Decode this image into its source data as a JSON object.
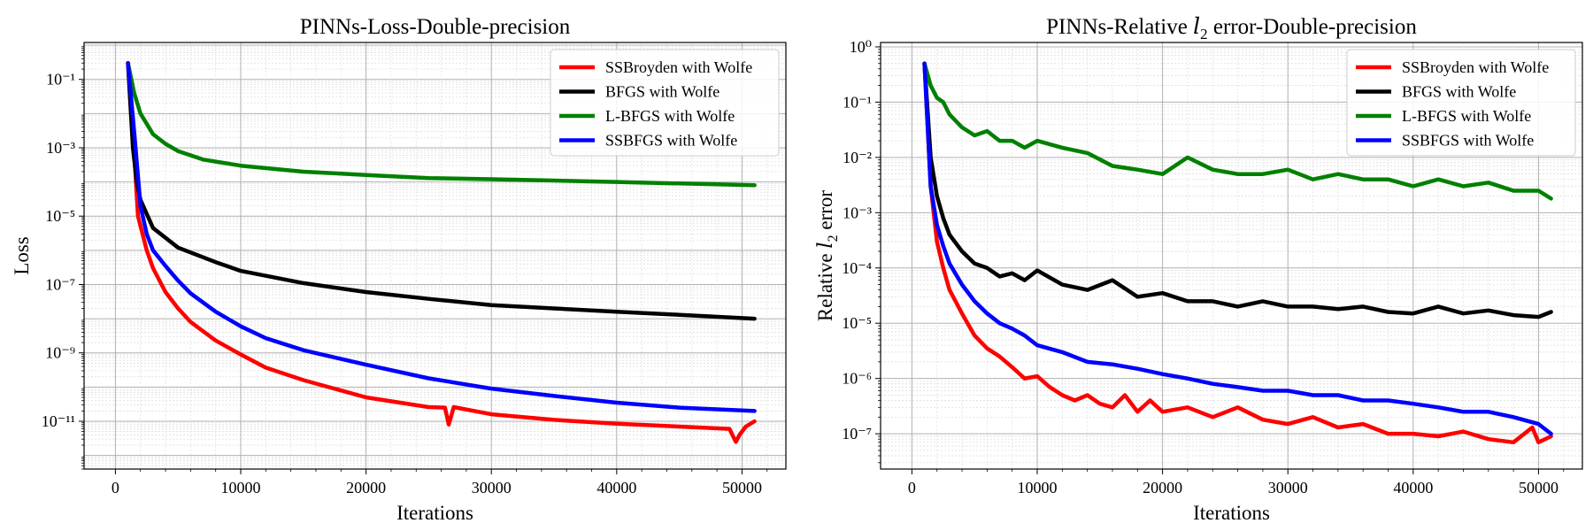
{
  "chart_data": [
    {
      "type": "line",
      "title": "PINNs-Loss-Double-precision",
      "xlabel": "Iterations",
      "ylabel": "Loss",
      "yscale": "log",
      "xlim": [
        -2500,
        53500
      ],
      "ylim": [
        4e-13,
        1.2
      ],
      "x_ticks": [
        0,
        10000,
        20000,
        30000,
        40000,
        50000
      ],
      "y_ticks": [
        1e-11,
        1e-09,
        1e-07,
        1e-05,
        0.001,
        0.1
      ],
      "grid": true,
      "grid_minor": true,
      "legend": "top-right",
      "series": [
        {
          "name": "SSBroyden with Wolfe",
          "color": "#ff0000",
          "x": [
            1000,
            1400,
            1800,
            2500,
            3000,
            4000,
            5000,
            6000,
            8000,
            10000,
            12000,
            15000,
            20000,
            25000,
            26300,
            26600,
            27000,
            30000,
            35000,
            40000,
            45000,
            49000,
            49500,
            49800,
            50300,
            51000
          ],
          "y": [
            0.3,
            0.003,
            1e-05,
            1e-06,
            3e-07,
            6e-08,
            2e-08,
            8e-09,
            2.3e-09,
            9e-10,
            3.7e-10,
            1.6e-10,
            5e-11,
            2.6e-11,
            2.5e-11,
            8e-12,
            2.6e-11,
            1.6e-11,
            1.1e-11,
            8.5e-12,
            7e-12,
            6e-12,
            2.5e-12,
            4e-12,
            7e-12,
            1e-11
          ]
        },
        {
          "name": "BFGS with Wolfe",
          "color": "#000000",
          "x": [
            1000,
            1400,
            1700,
            2000,
            3000,
            5000,
            8000,
            10000,
            15000,
            20000,
            25000,
            30000,
            35000,
            40000,
            45000,
            51000
          ],
          "y": [
            0.3,
            0.001,
            0.0001,
            3e-05,
            4.5e-06,
            1.2e-06,
            4.5e-07,
            2.5e-07,
            1.1e-07,
            6e-08,
            3.8e-08,
            2.5e-08,
            2e-08,
            1.6e-08,
            1.3e-08,
            1e-08
          ]
        },
        {
          "name": "L-BFGS with Wolfe",
          "color": "#008000",
          "x": [
            1000,
            1500,
            2000,
            3000,
            4000,
            5000,
            7000,
            10000,
            15000,
            20000,
            25000,
            30000,
            35000,
            40000,
            45000,
            51000
          ],
          "y": [
            0.3,
            0.04,
            0.01,
            0.0025,
            0.0013,
            0.0008,
            0.00045,
            0.0003,
            0.0002,
            0.00016,
            0.00013,
            0.00012,
            0.00011,
            0.0001,
            9e-05,
            8e-05
          ]
        },
        {
          "name": "SSBFGS with Wolfe",
          "color": "#0000ff",
          "x": [
            1000,
            1500,
            2000,
            2500,
            3000,
            4000,
            5000,
            6000,
            8000,
            10000,
            12000,
            15000,
            20000,
            25000,
            30000,
            35000,
            40000,
            45000,
            51000
          ],
          "y": [
            0.3,
            0.003,
            2e-05,
            3e-06,
            1e-06,
            3.5e-07,
            1.3e-07,
            5.5e-08,
            1.6e-08,
            6e-09,
            2.7e-09,
            1.2e-09,
            4.5e-10,
            1.8e-10,
            9e-11,
            5.5e-11,
            3.5e-11,
            2.5e-11,
            2e-11
          ]
        }
      ]
    },
    {
      "type": "line",
      "title": "PINNs-Relative l2 error-Double-precision",
      "xlabel": "Iterations",
      "ylabel": "Relative l2 error",
      "yscale": "log",
      "xlim": [
        -2500,
        53500
      ],
      "ylim": [
        2.3e-08,
        1.2
      ],
      "x_ticks": [
        0,
        10000,
        20000,
        30000,
        40000,
        50000
      ],
      "y_ticks": [
        1e-07,
        1e-06,
        1e-05,
        0.0001,
        0.001,
        0.01,
        0.1,
        1
      ],
      "grid": true,
      "grid_minor": true,
      "legend": "top-right",
      "series": [
        {
          "name": "SSBroyden with Wolfe",
          "color": "#ff0000",
          "x": [
            1000,
            1500,
            2000,
            2500,
            3000,
            4000,
            5000,
            6000,
            7000,
            8000,
            9000,
            10000,
            11000,
            12000,
            13000,
            14000,
            15000,
            16000,
            17000,
            18000,
            19000,
            20000,
            22000,
            24000,
            26000,
            28000,
            30000,
            32000,
            34000,
            36000,
            38000,
            40000,
            42000,
            44000,
            46000,
            48000,
            49500,
            50000,
            51000
          ],
          "y": [
            0.5,
            0.003,
            0.0003,
            0.0001,
            4e-05,
            1.5e-05,
            6e-06,
            3.5e-06,
            2.5e-06,
            1.6e-06,
            1e-06,
            1.1e-06,
            7e-07,
            5e-07,
            4e-07,
            5e-07,
            3.5e-07,
            3e-07,
            5e-07,
            2.5e-07,
            4e-07,
            2.5e-07,
            3e-07,
            2e-07,
            3e-07,
            1.8e-07,
            1.5e-07,
            2e-07,
            1.3e-07,
            1.5e-07,
            1e-07,
            1e-07,
            9e-08,
            1.1e-07,
            8e-08,
            7e-08,
            1.3e-07,
            7e-08,
            9e-08
          ]
        },
        {
          "name": "BFGS with Wolfe",
          "color": "#000000",
          "x": [
            1000,
            1500,
            2000,
            2500,
            3000,
            4000,
            5000,
            6000,
            7000,
            8000,
            9000,
            10000,
            12000,
            14000,
            16000,
            18000,
            20000,
            22000,
            24000,
            26000,
            28000,
            30000,
            32000,
            34000,
            36000,
            38000,
            40000,
            42000,
            44000,
            46000,
            48000,
            50000,
            51000
          ],
          "y": [
            0.5,
            0.01,
            0.002,
            0.0008,
            0.0004,
            0.0002,
            0.00012,
            0.0001,
            7e-05,
            8e-05,
            6e-05,
            9e-05,
            5e-05,
            4e-05,
            6e-05,
            3e-05,
            3.5e-05,
            2.5e-05,
            2.5e-05,
            2e-05,
            2.5e-05,
            2e-05,
            2e-05,
            1.8e-05,
            2e-05,
            1.6e-05,
            1.5e-05,
            2e-05,
            1.5e-05,
            1.7e-05,
            1.4e-05,
            1.3e-05,
            1.6e-05
          ]
        },
        {
          "name": "L-BFGS with Wolfe",
          "color": "#008000",
          "x": [
            1000,
            1500,
            2000,
            2500,
            3000,
            4000,
            5000,
            6000,
            7000,
            8000,
            9000,
            10000,
            12000,
            14000,
            16000,
            18000,
            20000,
            22000,
            24000,
            26000,
            28000,
            30000,
            32000,
            34000,
            36000,
            38000,
            40000,
            42000,
            44000,
            46000,
            48000,
            50000,
            51000
          ],
          "y": [
            0.5,
            0.2,
            0.12,
            0.1,
            0.06,
            0.035,
            0.025,
            0.03,
            0.02,
            0.02,
            0.015,
            0.02,
            0.015,
            0.012,
            0.007,
            0.006,
            0.005,
            0.01,
            0.006,
            0.005,
            0.005,
            0.006,
            0.004,
            0.005,
            0.004,
            0.004,
            0.003,
            0.004,
            0.003,
            0.0035,
            0.0025,
            0.0025,
            0.0018
          ]
        },
        {
          "name": "SSBFGS with Wolfe",
          "color": "#0000ff",
          "x": [
            1000,
            1500,
            2000,
            2500,
            3000,
            4000,
            5000,
            6000,
            7000,
            8000,
            9000,
            10000,
            12000,
            14000,
            16000,
            18000,
            20000,
            22000,
            24000,
            26000,
            28000,
            30000,
            32000,
            34000,
            36000,
            38000,
            40000,
            42000,
            44000,
            46000,
            48000,
            50000,
            51000
          ],
          "y": [
            0.5,
            0.003,
            0.0006,
            0.00025,
            0.00012,
            5e-05,
            2.5e-05,
            1.5e-05,
            1e-05,
            8e-06,
            6e-06,
            4e-06,
            3e-06,
            2e-06,
            1.8e-06,
            1.5e-06,
            1.2e-06,
            1e-06,
            8e-07,
            7e-07,
            6e-07,
            6e-07,
            5e-07,
            5e-07,
            4e-07,
            4e-07,
            3.5e-07,
            3e-07,
            2.5e-07,
            2.5e-07,
            2e-07,
            1.5e-07,
            1e-07
          ]
        }
      ]
    }
  ]
}
